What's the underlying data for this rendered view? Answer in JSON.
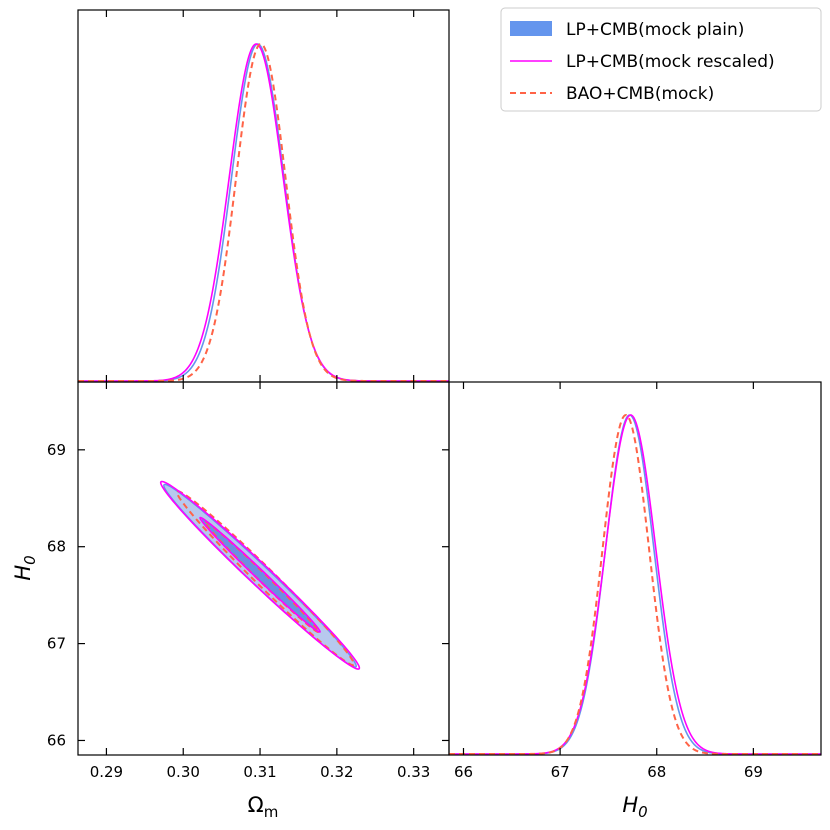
{
  "chart_data": {
    "type": "triangle-posterior",
    "colors": {
      "plain": "#6495ed",
      "plain_outer_fill": "#b7c8ee",
      "plain_inner_fill": "#6c8fe0",
      "rescaled": "#ff00ff",
      "bao": "#ff6347"
    },
    "legend": {
      "placement": "top-right",
      "entries": [
        {
          "label": "LP+CMB(mock plain)",
          "style": "filled",
          "color": "#6495ed"
        },
        {
          "label": "LP+CMB(mock rescaled)",
          "style": "solid",
          "color": "#ff00ff"
        },
        {
          "label": "BAO+CMB(mock)",
          "style": "dashed",
          "color": "#ff6347"
        }
      ]
    },
    "axes": {
      "omega_m": {
        "label": "Ωm",
        "range": [
          0.2863,
          0.3346
        ],
        "ticks": [
          "0.29",
          "0.30",
          "0.31",
          "0.32",
          "0.33"
        ],
        "tick_values": [
          0.29,
          0.3,
          0.31,
          0.32,
          0.33
        ]
      },
      "h0": {
        "label": "H0",
        "range": [
          65.85,
          69.7
        ],
        "ticks": [
          "66",
          "67",
          "68",
          "69"
        ],
        "tick_values": [
          66,
          67,
          68,
          69
        ]
      }
    },
    "marginal_omega_m": [
      {
        "name": "LP+CMB(mock plain)",
        "mean": 0.3097,
        "sigma": 0.0034
      },
      {
        "name": "LP+CMB(mock rescaled)",
        "mean": 0.3095,
        "sigma": 0.0035
      },
      {
        "name": "BAO+CMB(mock)",
        "mean": 0.3101,
        "sigma": 0.0032
      }
    ],
    "marginal_h0": [
      {
        "name": "LP+CMB(mock plain)",
        "mean": 67.72,
        "sigma": 0.25
      },
      {
        "name": "LP+CMB(mock rescaled)",
        "mean": 67.73,
        "sigma": 0.26
      },
      {
        "name": "BAO+CMB(mock)",
        "mean": 67.68,
        "sigma": 0.24
      }
    ],
    "joint_contours": [
      {
        "name": "LP+CMB(mock plain)",
        "center": [
          0.3099,
          67.71
        ],
        "levels": [
          {
            "level": "68%",
            "ends": [
              [
                0.3025,
                68.28
              ],
              [
                0.3174,
                67.14
              ]
            ],
            "halfwidth_h0": 0.055
          },
          {
            "level": "95%",
            "ends": [
              [
                0.2975,
                68.64
              ],
              [
                0.3225,
                66.76
              ]
            ],
            "halfwidth_h0": 0.14
          }
        ]
      },
      {
        "name": "LP+CMB(mock rescaled)",
        "center": [
          0.3099,
          67.71
        ],
        "levels": [
          {
            "level": "68%",
            "ends": [
              [
                0.3022,
                68.3
              ],
              [
                0.3178,
                67.12
              ]
            ],
            "halfwidth_h0": 0.065
          },
          {
            "level": "95%",
            "ends": [
              [
                0.2971,
                68.67
              ],
              [
                0.3229,
                66.74
              ]
            ],
            "halfwidth_h0": 0.15
          }
        ]
      },
      {
        "name": "BAO+CMB(mock)",
        "center": [
          0.3102,
          67.69
        ],
        "levels": [
          {
            "level": "68%",
            "ends": [
              [
                0.3028,
                68.26
              ],
              [
                0.3176,
                67.12
              ]
            ],
            "halfwidth_h0": 0.06
          },
          {
            "level": "95%",
            "ends": [
              [
                0.2992,
                68.57
              ],
              [
                0.3222,
                66.78
              ]
            ],
            "halfwidth_h0": 0.135
          }
        ]
      }
    ]
  }
}
